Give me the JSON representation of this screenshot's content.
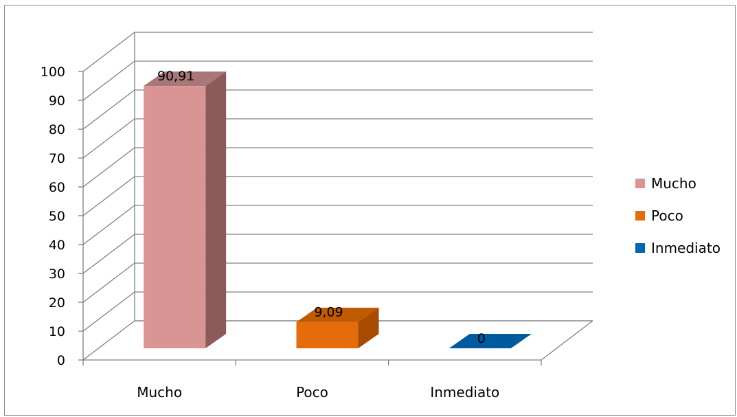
{
  "chart_data": {
    "type": "bar",
    "three_d": true,
    "categories": [
      "Mucho",
      "Poco",
      "Inmediato"
    ],
    "values": [
      90.91,
      9.09,
      0
    ],
    "data_labels": [
      "90,91",
      "9,09",
      "0"
    ],
    "ylim": [
      0,
      100
    ],
    "yticks": [
      "0",
      "10",
      "20",
      "30",
      "40",
      "50",
      "60",
      "70",
      "80",
      "90",
      "100"
    ],
    "grid": true,
    "legend_position": "right",
    "legend": [
      "Mucho",
      "Poco",
      "Inmediato"
    ],
    "colors": {
      "Mucho": {
        "front": "#d99594",
        "side": "#8b5a59",
        "top": "#a87878"
      },
      "Poco": {
        "front": "#e46c0a",
        "side": "#a84a00",
        "top": "#c05a00"
      },
      "Inmediato": {
        "front": "#0066b0",
        "side": "#00406e",
        "top": "#005a9e"
      }
    },
    "grid_color": "#808080"
  }
}
